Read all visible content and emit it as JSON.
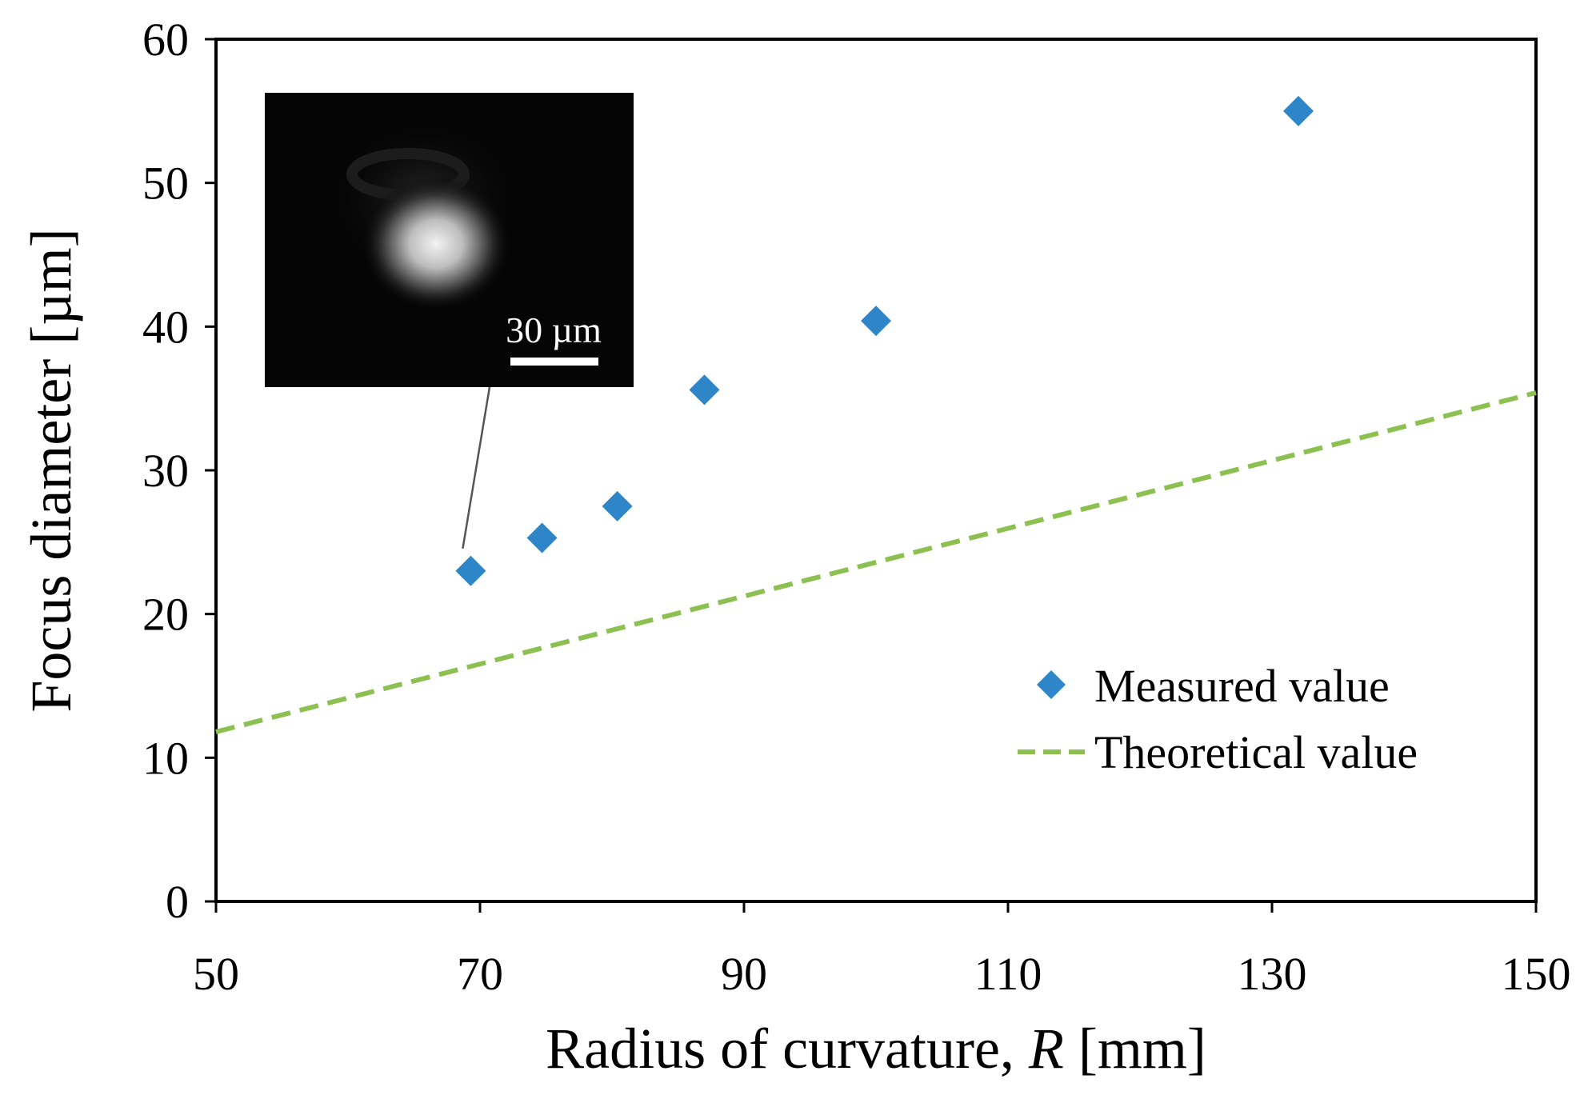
{
  "chart_data": {
    "type": "scatter",
    "xlabel_main": "Radius of curvature, ",
    "xlabel_italic": "R",
    "xlabel_unit": " [mm]",
    "ylabel": "Focus diameter [µm]",
    "xlim": [
      50,
      150
    ],
    "ylim": [
      0,
      60
    ],
    "xticks": [
      "50",
      "70",
      "90",
      "110",
      "130",
      "150"
    ],
    "yticks": [
      "0",
      "10",
      "20",
      "30",
      "40",
      "50",
      "60"
    ],
    "grid": false,
    "legend_position": "lower-right",
    "series": [
      {
        "name": "Measured value",
        "marker": "diamond",
        "color": "#2e86c8",
        "points": [
          {
            "x": 69.3,
            "y": 23.0
          },
          {
            "x": 74.7,
            "y": 25.3
          },
          {
            "x": 80.4,
            "y": 27.5
          },
          {
            "x": 87.0,
            "y": 35.6
          },
          {
            "x": 100.0,
            "y": 40.4
          },
          {
            "x": 132.0,
            "y": 55.0
          }
        ]
      },
      {
        "name": "Theoretical value",
        "style": "dashed-line",
        "color": "#8cc152",
        "points": [
          {
            "x": 50,
            "y": 11.8
          },
          {
            "x": 150,
            "y": 35.4
          }
        ]
      }
    ],
    "inset": {
      "scale_bar_label": "30 µm",
      "points_to": {
        "x": 69.3,
        "y": 23.0
      }
    }
  }
}
